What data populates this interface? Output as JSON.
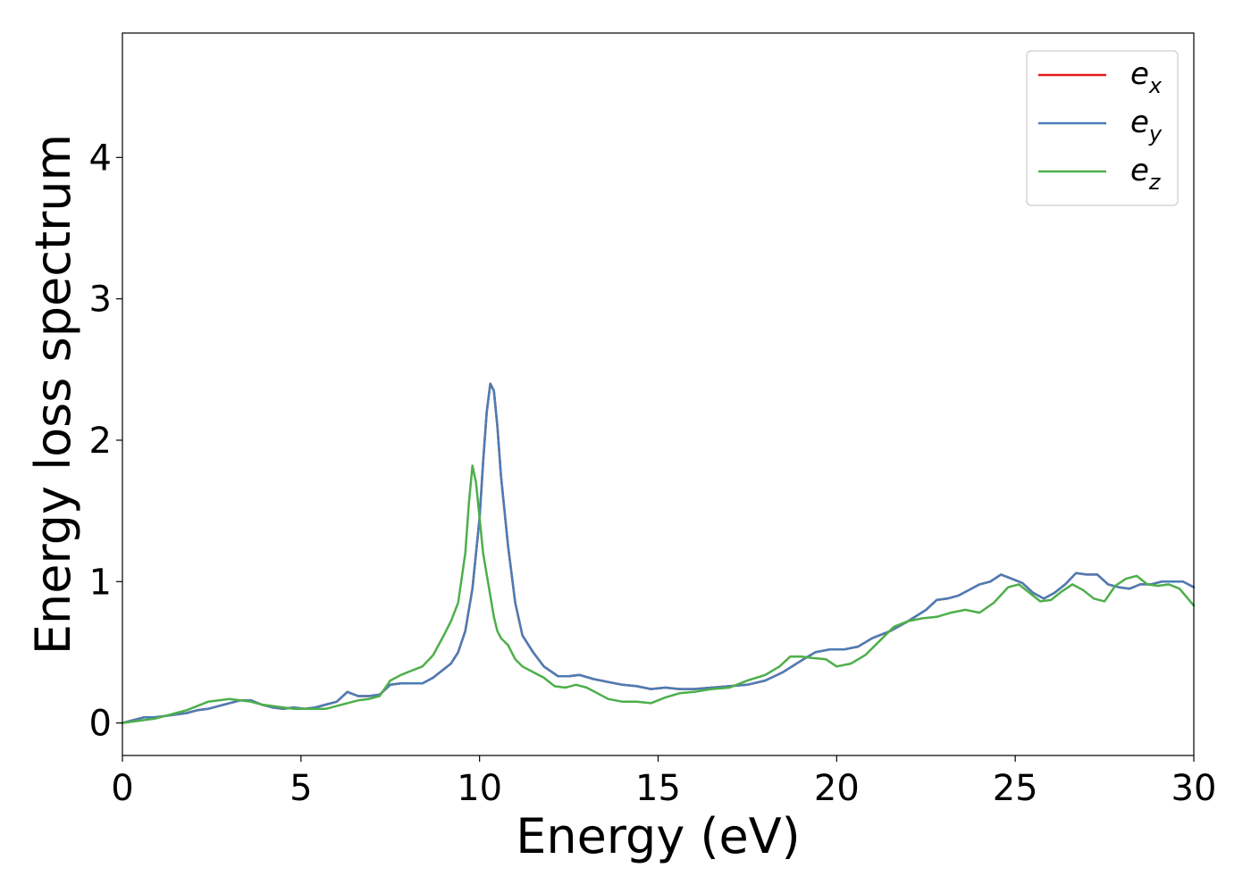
{
  "chart_data": {
    "type": "line",
    "xlabel": "Energy (eV)",
    "ylabel": "Energy loss spectrum",
    "xlim": [
      0,
      30
    ],
    "ylim": [
      -0.23,
      4.88
    ],
    "xticks": [
      0,
      5,
      10,
      15,
      20,
      25,
      30
    ],
    "xtick_labels": [
      "0",
      "5",
      "10",
      "15",
      "20",
      "25",
      "30"
    ],
    "yticks": [
      0,
      1,
      2,
      3,
      4
    ],
    "ytick_labels": [
      "0",
      "1",
      "2",
      "3",
      "4"
    ],
    "grid": false,
    "legend_position": "top-right",
    "series": [
      {
        "name": "e_x",
        "label_base": "e",
        "label_sub": "x",
        "color": "#e41a1c",
        "x": [
          0,
          0.3,
          0.6,
          0.9,
          1.2,
          1.5,
          1.8,
          2.1,
          2.4,
          2.7,
          3.0,
          3.3,
          3.6,
          3.9,
          4.2,
          4.5,
          4.8,
          5.1,
          5.4,
          5.7,
          6.0,
          6.3,
          6.6,
          6.9,
          7.2,
          7.5,
          7.8,
          8.1,
          8.4,
          8.7,
          9.0,
          9.2,
          9.4,
          9.6,
          9.8,
          10.0,
          10.1,
          10.2,
          10.3,
          10.4,
          10.5,
          10.6,
          10.8,
          11.0,
          11.2,
          11.5,
          11.8,
          12.2,
          12.5,
          12.8,
          13.2,
          13.6,
          14.0,
          14.4,
          14.8,
          15.2,
          15.6,
          16.0,
          16.5,
          17.0,
          17.5,
          18.0,
          18.5,
          19.0,
          19.4,
          19.8,
          20.2,
          20.6,
          21.0,
          21.5,
          22.0,
          22.5,
          22.8,
          23.1,
          23.4,
          23.7,
          24.0,
          24.3,
          24.6,
          24.9,
          25.2,
          25.5,
          25.8,
          26.1,
          26.4,
          26.7,
          27.0,
          27.3,
          27.6,
          27.9,
          28.2,
          28.5,
          28.8,
          29.1,
          29.4,
          29.7,
          30.0
        ],
        "y": [
          0.0,
          0.02,
          0.04,
          0.04,
          0.05,
          0.06,
          0.07,
          0.09,
          0.1,
          0.12,
          0.14,
          0.16,
          0.16,
          0.13,
          0.11,
          0.1,
          0.11,
          0.1,
          0.11,
          0.13,
          0.15,
          0.22,
          0.19,
          0.19,
          0.2,
          0.27,
          0.28,
          0.28,
          0.28,
          0.32,
          0.38,
          0.42,
          0.5,
          0.65,
          0.95,
          1.45,
          1.85,
          2.2,
          2.4,
          2.35,
          2.1,
          1.75,
          1.25,
          0.85,
          0.62,
          0.5,
          0.4,
          0.33,
          0.33,
          0.34,
          0.31,
          0.29,
          0.27,
          0.26,
          0.24,
          0.25,
          0.24,
          0.24,
          0.25,
          0.26,
          0.27,
          0.3,
          0.36,
          0.44,
          0.5,
          0.52,
          0.52,
          0.54,
          0.6,
          0.65,
          0.72,
          0.8,
          0.87,
          0.88,
          0.9,
          0.94,
          0.98,
          1.0,
          1.05,
          1.02,
          0.99,
          0.92,
          0.88,
          0.92,
          0.98,
          1.06,
          1.05,
          1.05,
          0.98,
          0.96,
          0.95,
          0.98,
          0.98,
          1.0,
          1.0,
          1.0,
          0.96
        ]
      },
      {
        "name": "e_y",
        "label_base": "e",
        "label_sub": "y",
        "color": "#4a7db6",
        "x": [
          0,
          0.3,
          0.6,
          0.9,
          1.2,
          1.5,
          1.8,
          2.1,
          2.4,
          2.7,
          3.0,
          3.3,
          3.6,
          3.9,
          4.2,
          4.5,
          4.8,
          5.1,
          5.4,
          5.7,
          6.0,
          6.3,
          6.6,
          6.9,
          7.2,
          7.5,
          7.8,
          8.1,
          8.4,
          8.7,
          9.0,
          9.2,
          9.4,
          9.6,
          9.8,
          10.0,
          10.1,
          10.2,
          10.3,
          10.4,
          10.5,
          10.6,
          10.8,
          11.0,
          11.2,
          11.5,
          11.8,
          12.2,
          12.5,
          12.8,
          13.2,
          13.6,
          14.0,
          14.4,
          14.8,
          15.2,
          15.6,
          16.0,
          16.5,
          17.0,
          17.5,
          18.0,
          18.5,
          19.0,
          19.4,
          19.8,
          20.2,
          20.6,
          21.0,
          21.5,
          22.0,
          22.5,
          22.8,
          23.1,
          23.4,
          23.7,
          24.0,
          24.3,
          24.6,
          24.9,
          25.2,
          25.5,
          25.8,
          26.1,
          26.4,
          26.7,
          27.0,
          27.3,
          27.6,
          27.9,
          28.2,
          28.5,
          28.8,
          29.1,
          29.4,
          29.7,
          30.0
        ],
        "y": [
          0.0,
          0.02,
          0.04,
          0.04,
          0.05,
          0.06,
          0.07,
          0.09,
          0.1,
          0.12,
          0.14,
          0.16,
          0.16,
          0.13,
          0.11,
          0.1,
          0.11,
          0.1,
          0.11,
          0.13,
          0.15,
          0.22,
          0.19,
          0.19,
          0.2,
          0.27,
          0.28,
          0.28,
          0.28,
          0.32,
          0.38,
          0.42,
          0.5,
          0.65,
          0.95,
          1.45,
          1.85,
          2.2,
          2.4,
          2.35,
          2.1,
          1.75,
          1.25,
          0.85,
          0.62,
          0.5,
          0.4,
          0.33,
          0.33,
          0.34,
          0.31,
          0.29,
          0.27,
          0.26,
          0.24,
          0.25,
          0.24,
          0.24,
          0.25,
          0.26,
          0.27,
          0.3,
          0.36,
          0.44,
          0.5,
          0.52,
          0.52,
          0.54,
          0.6,
          0.65,
          0.72,
          0.8,
          0.87,
          0.88,
          0.9,
          0.94,
          0.98,
          1.0,
          1.05,
          1.02,
          0.99,
          0.92,
          0.88,
          0.92,
          0.98,
          1.06,
          1.05,
          1.05,
          0.98,
          0.96,
          0.95,
          0.98,
          0.98,
          1.0,
          1.0,
          1.0,
          0.96
        ]
      },
      {
        "name": "e_z",
        "label_base": "e",
        "label_sub": "z",
        "color": "#4daf4a",
        "x": [
          0,
          0.3,
          0.6,
          0.9,
          1.2,
          1.5,
          1.8,
          2.1,
          2.4,
          2.7,
          3.0,
          3.3,
          3.6,
          3.9,
          4.2,
          4.5,
          4.8,
          5.1,
          5.4,
          5.7,
          6.0,
          6.3,
          6.6,
          6.9,
          7.2,
          7.5,
          7.8,
          8.1,
          8.4,
          8.7,
          9.0,
          9.2,
          9.4,
          9.6,
          9.7,
          9.8,
          9.9,
          10.0,
          10.1,
          10.2,
          10.3,
          10.4,
          10.5,
          10.6,
          10.8,
          11.0,
          11.2,
          11.5,
          11.8,
          12.1,
          12.4,
          12.7,
          13.0,
          13.3,
          13.6,
          14.0,
          14.4,
          14.8,
          15.2,
          15.6,
          16.0,
          16.5,
          17.0,
          17.5,
          18.0,
          18.4,
          18.7,
          19.0,
          19.3,
          19.7,
          20.0,
          20.4,
          20.8,
          21.2,
          21.6,
          22.0,
          22.4,
          22.8,
          23.2,
          23.6,
          24.0,
          24.4,
          24.8,
          25.1,
          25.4,
          25.7,
          26.0,
          26.3,
          26.6,
          26.9,
          27.2,
          27.5,
          27.8,
          28.1,
          28.4,
          28.7,
          29.0,
          29.3,
          29.6,
          30.0
        ],
        "y": [
          0.0,
          0.01,
          0.02,
          0.03,
          0.05,
          0.07,
          0.09,
          0.12,
          0.15,
          0.16,
          0.17,
          0.16,
          0.15,
          0.13,
          0.12,
          0.11,
          0.1,
          0.1,
          0.1,
          0.1,
          0.12,
          0.14,
          0.16,
          0.17,
          0.19,
          0.3,
          0.34,
          0.37,
          0.4,
          0.48,
          0.62,
          0.72,
          0.85,
          1.2,
          1.55,
          1.82,
          1.7,
          1.45,
          1.2,
          1.05,
          0.9,
          0.75,
          0.65,
          0.6,
          0.55,
          0.45,
          0.4,
          0.36,
          0.32,
          0.26,
          0.25,
          0.27,
          0.25,
          0.21,
          0.17,
          0.15,
          0.15,
          0.14,
          0.18,
          0.21,
          0.22,
          0.24,
          0.25,
          0.3,
          0.34,
          0.4,
          0.47,
          0.47,
          0.46,
          0.45,
          0.4,
          0.42,
          0.48,
          0.58,
          0.68,
          0.72,
          0.74,
          0.75,
          0.78,
          0.8,
          0.78,
          0.85,
          0.96,
          0.98,
          0.92,
          0.86,
          0.87,
          0.93,
          0.98,
          0.94,
          0.88,
          0.86,
          0.97,
          1.02,
          1.04,
          0.98,
          0.97,
          0.98,
          0.95,
          0.83
        ]
      }
    ]
  }
}
